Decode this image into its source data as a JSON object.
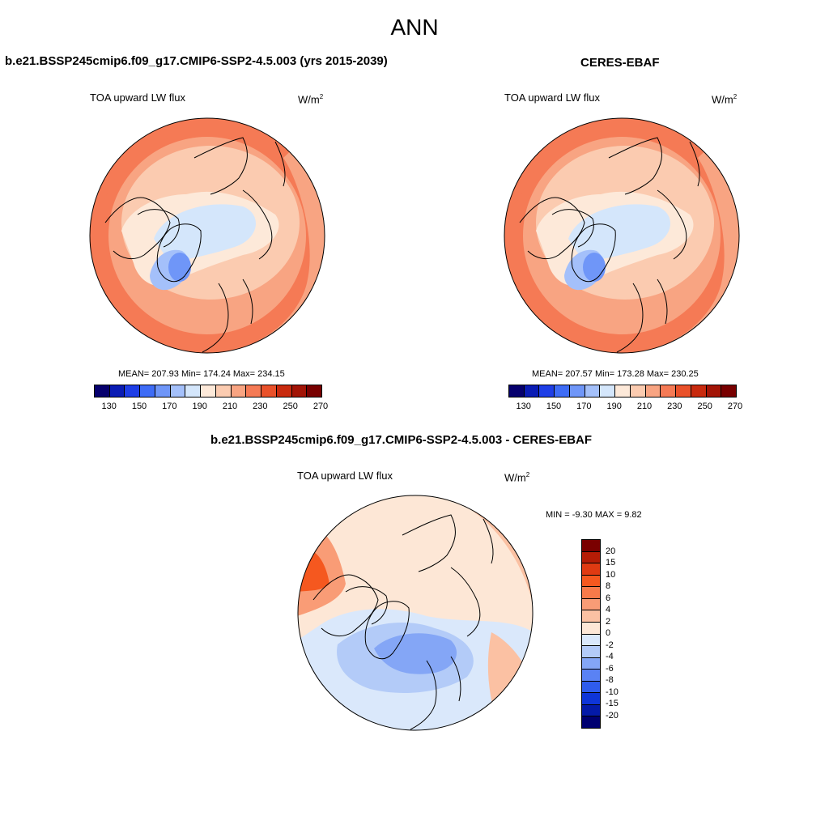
{
  "figure": {
    "season": "ANN"
  },
  "panels": [
    {
      "title": "b.e21.BSSP245cmip6.f09_g17.CMIP6-SSP2-4.5.003 (yrs 2015-2039)",
      "variable": "TOA upward LW flux",
      "units": "W/m",
      "units_sup": "2",
      "stats": "MEAN= 207.93  Min= 174.24  Max= 234.15"
    },
    {
      "title": "CERES-EBAF",
      "variable": "TOA upward LW flux",
      "units": "W/m",
      "units_sup": "2",
      "stats": "MEAN= 207.57  Min= 173.28  Max= 230.25"
    },
    {
      "title": "b.e21.BSSP245cmip6.f09_g17.CMIP6-SSP2-4.5.003 - CERES-EBAF",
      "variable": "TOA upward LW flux",
      "units": "W/m",
      "units_sup": "2",
      "stats": "MIN =  -9.30 MAX =   9.82"
    }
  ],
  "colorbar_abs": {
    "colors": [
      "#06006e",
      "#0a1cb4",
      "#1e3ee6",
      "#3e6cf6",
      "#6f96f8",
      "#a4c0fa",
      "#d4e6fb",
      "#fde9d9",
      "#fbcbb0",
      "#f8a482",
      "#f57a55",
      "#e9512a",
      "#c82a0e",
      "#a21406",
      "#780000"
    ],
    "tick_labels": [
      "130",
      "150",
      "170",
      "190",
      "210",
      "230",
      "250",
      "270"
    ]
  },
  "colorbar_diff": {
    "colors": [
      "#7a0000",
      "#b51c06",
      "#e03a12",
      "#f5581f",
      "#f77a4a",
      "#f99c76",
      "#fbc1a3",
      "#fde7d6",
      "#dae8fb",
      "#b3cbf8",
      "#84a6f6",
      "#5a82f4",
      "#2f5ced",
      "#0e35d8",
      "#041aa8",
      "#000070"
    ],
    "tick_labels": [
      "20",
      "15",
      "10",
      "8",
      "6",
      "4",
      "2",
      "0",
      "-2",
      "-4",
      "-6",
      "-8",
      "-10",
      "-15",
      "-20"
    ]
  }
}
